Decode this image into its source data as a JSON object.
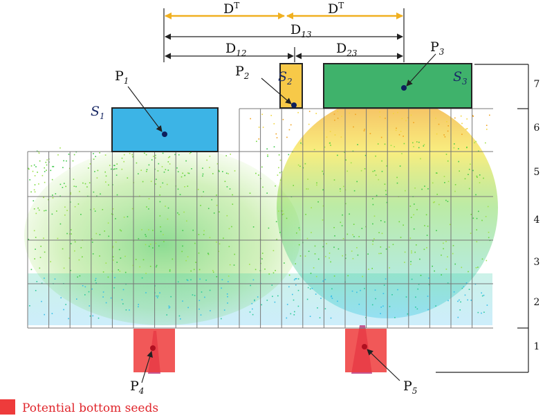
{
  "dimensions": {
    "dt_left": {
      "main": "D",
      "sup": "T"
    },
    "dt_right": {
      "main": "D",
      "sup": "T"
    },
    "d13": {
      "main": "D",
      "sub": "13"
    },
    "d12": {
      "main": "D",
      "sub": "12"
    },
    "d23": {
      "main": "D",
      "sub": "23"
    }
  },
  "seeds": [
    {
      "id": "s1",
      "main": "S",
      "sub": "1",
      "color": "#3cb4e6"
    },
    {
      "id": "s2",
      "main": "S",
      "sub": "2",
      "color": "#f7c948"
    },
    {
      "id": "s3",
      "main": "S",
      "sub": "3",
      "color": "#3fb26b"
    }
  ],
  "points": [
    {
      "id": "p1",
      "main": "P",
      "sub": "1",
      "color": "#0d1f5c"
    },
    {
      "id": "p2",
      "main": "P",
      "sub": "2",
      "color": "#0d1f5c"
    },
    {
      "id": "p3",
      "main": "P",
      "sub": "3",
      "color": "#0d1f5c"
    },
    {
      "id": "p4",
      "main": "P",
      "sub": "4",
      "color": "#b01020"
    },
    {
      "id": "p5",
      "main": "P",
      "sub": "5",
      "color": "#b01020"
    }
  ],
  "layers": [
    "7",
    "6",
    "5",
    "4",
    "3",
    "2",
    "1"
  ],
  "legend": {
    "label": "Potential bottom seeds",
    "color": "#ee3b3b"
  },
  "colors": {
    "arrow": "#f0b020",
    "bottom_seed": "#ee3b3b",
    "grid": "#777777"
  }
}
